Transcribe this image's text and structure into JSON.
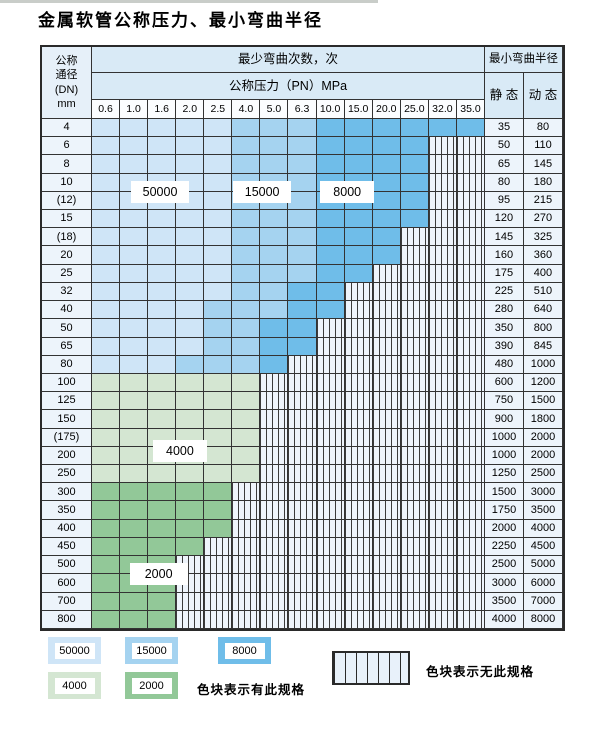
{
  "title": "金属软管公称压力、最小弯曲半径",
  "table": {
    "corner_lines": [
      "公称",
      "通径",
      "(DN)",
      "mm"
    ],
    "cycles_header": "最少弯曲次数，次",
    "pressure_header": "公称压力（PN）MPa",
    "radius_header": "最小弯曲半径",
    "static_label": "静 态",
    "dynamic_label": "动 态",
    "pressures": [
      "0.6",
      "1.0",
      "1.6",
      "2.0",
      "2.5",
      "4.0",
      "5.0",
      "6.3",
      "10.0",
      "15.0",
      "20.0",
      "25.0",
      "32.0",
      "35.0"
    ],
    "cell_codes": {
      "a": "50000",
      "b": "15000",
      "c": "8000",
      "d": "4000",
      "e": "2000",
      "x": "no-spec-hatch"
    },
    "rows": [
      {
        "dn": "4",
        "cells": "aaaaabbbcccccc",
        "static": "35",
        "dynamic": "80"
      },
      {
        "dn": "6",
        "cells": "aaaaabbbccccxx",
        "static": "50",
        "dynamic": "110"
      },
      {
        "dn": "8",
        "cells": "aaaaabbbccccxx",
        "static": "65",
        "dynamic": "145"
      },
      {
        "dn": "10",
        "cells": "aaaaabbbccccxx",
        "static": "80",
        "dynamic": "180"
      },
      {
        "dn": "(12)",
        "cells": "aaaaabbbccccxx",
        "static": "95",
        "dynamic": "215"
      },
      {
        "dn": "15",
        "cells": "aaaaabbbccccxx",
        "static": "120",
        "dynamic": "270"
      },
      {
        "dn": "(18)",
        "cells": "aaaaabbbcccxxx",
        "static": "145",
        "dynamic": "325"
      },
      {
        "dn": "20",
        "cells": "aaaaabbbcccxxx",
        "static": "160",
        "dynamic": "360"
      },
      {
        "dn": "25",
        "cells": "aaaaabbbccxxxx",
        "static": "175",
        "dynamic": "400"
      },
      {
        "dn": "32",
        "cells": "aaaaabbccxxxxx",
        "static": "225",
        "dynamic": "510"
      },
      {
        "dn": "40",
        "cells": "aaaabbbccxxxxx",
        "static": "280",
        "dynamic": "640"
      },
      {
        "dn": "50",
        "cells": "aaaabbccxxxxxx",
        "static": "350",
        "dynamic": "800"
      },
      {
        "dn": "65",
        "cells": "aaaabbccxxxxxx",
        "static": "390",
        "dynamic": "845"
      },
      {
        "dn": "80",
        "cells": "aaabbbcxxxxxxx",
        "static": "480",
        "dynamic": "1000"
      },
      {
        "dn": "100",
        "cells": "ddddddxxxxxxxx",
        "static": "600",
        "dynamic": "1200"
      },
      {
        "dn": "125",
        "cells": "ddddddxxxxxxxx",
        "static": "750",
        "dynamic": "1500"
      },
      {
        "dn": "150",
        "cells": "ddddddxxxxxxxx",
        "static": "900",
        "dynamic": "1800"
      },
      {
        "dn": "(175)",
        "cells": "ddddddxxxxxxxx",
        "static": "1000",
        "dynamic": "2000"
      },
      {
        "dn": "200",
        "cells": "ddddddxxxxxxxx",
        "static": "1000",
        "dynamic": "2000"
      },
      {
        "dn": "250",
        "cells": "ddddddxxxxxxxx",
        "static": "1250",
        "dynamic": "2500"
      },
      {
        "dn": "300",
        "cells": "eeeeexxxxxxxxx",
        "static": "1500",
        "dynamic": "3000"
      },
      {
        "dn": "350",
        "cells": "eeeeexxxxxxxxx",
        "static": "1750",
        "dynamic": "3500"
      },
      {
        "dn": "400",
        "cells": "eeeeexxxxxxxxx",
        "static": "2000",
        "dynamic": "4000"
      },
      {
        "dn": "450",
        "cells": "eeeexxxxxxxxxx",
        "static": "2250",
        "dynamic": "4500"
      },
      {
        "dn": "500",
        "cells": "eeexxxxxxxxxxx",
        "static": "2500",
        "dynamic": "5000"
      },
      {
        "dn": "600",
        "cells": "eeexxxxxxxxxxx",
        "static": "3000",
        "dynamic": "6000"
      },
      {
        "dn": "700",
        "cells": "eeexxxxxxxxxxx",
        "static": "3500",
        "dynamic": "7000"
      },
      {
        "dn": "800",
        "cells": "eeexxxxxxxxxxx",
        "static": "4000",
        "dynamic": "8000"
      }
    ]
  },
  "region_labels": [
    {
      "text": "50000",
      "col": 2.4,
      "row": 4,
      "w": 58
    },
    {
      "text": "15000",
      "col": 6.0,
      "row": 4,
      "w": 58
    },
    {
      "text": "8000",
      "col": 9.0,
      "row": 4,
      "w": 54
    },
    {
      "text": "4000",
      "col": 3.1,
      "row": 18.2,
      "w": 54
    },
    {
      "text": "2000",
      "col": 2.35,
      "row": 25,
      "w": 58
    }
  ],
  "legend": {
    "items": [
      {
        "label": "50000",
        "key": "a"
      },
      {
        "label": "15000",
        "key": "b"
      },
      {
        "label": "8000",
        "key": "c"
      },
      {
        "label": "4000",
        "key": "d"
      },
      {
        "label": "2000",
        "key": "e"
      }
    ],
    "has_spec_text": "色块表示有此规格",
    "no_spec_text": "色块表示无此规格"
  },
  "colors": {
    "band_50000": "#cfe5f7",
    "band_15000": "#a5d3f0",
    "band_8000": "#6fbde9",
    "band_4000": "#d4e6d2",
    "band_2000": "#92c898",
    "hatch_bg": "#eef4fb",
    "grid_line": "#333333",
    "header_bg": "#d9eaf6"
  }
}
